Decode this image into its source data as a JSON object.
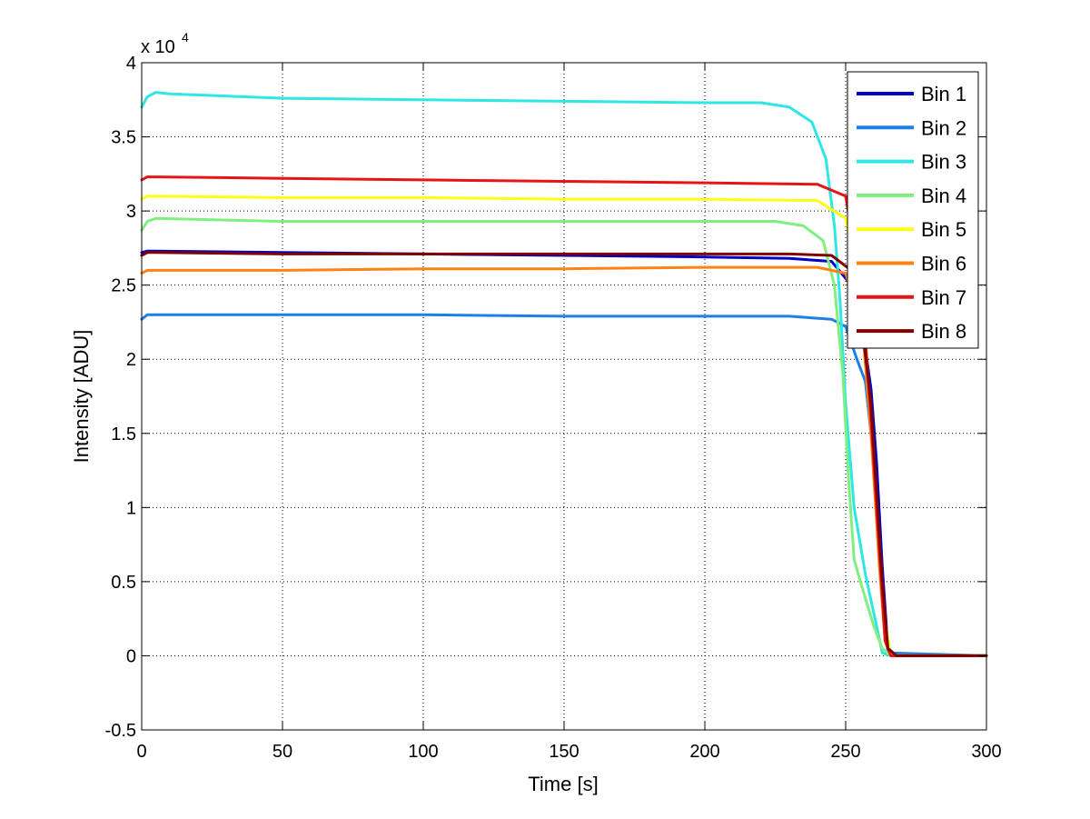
{
  "chart_data": {
    "type": "line",
    "title": "",
    "xlabel": "Time [s]",
    "ylabel": "Intensity [ADU]",
    "y_multiplier_base": "x 10",
    "y_multiplier_exponent": "4",
    "xlim": [
      0,
      300
    ],
    "ylim": [
      -0.5,
      4
    ],
    "x_ticks": [
      0,
      50,
      100,
      150,
      200,
      250,
      300
    ],
    "x_tick_labels": [
      "0",
      "50",
      "100",
      "150",
      "200",
      "250",
      "300"
    ],
    "y_ticks": [
      -0.5,
      0,
      0.5,
      1,
      1.5,
      2,
      2.5,
      3,
      3.5,
      4
    ],
    "y_tick_labels": [
      "-0.5",
      "0",
      "0.5",
      "1",
      "1.5",
      "2",
      "2.5",
      "3",
      "3.5",
      "4"
    ],
    "grid": true,
    "legend_position": "top-right",
    "series": [
      {
        "name": "Bin 1",
        "color": "#0000c8",
        "x": [
          0,
          2,
          5,
          50,
          100,
          150,
          200,
          230,
          245,
          252,
          256,
          259,
          261,
          263,
          265,
          268,
          300
        ],
        "y": [
          2.72,
          2.73,
          2.73,
          2.72,
          2.71,
          2.7,
          2.69,
          2.68,
          2.66,
          2.5,
          2.2,
          1.8,
          1.3,
          0.6,
          0.05,
          0,
          0
        ]
      },
      {
        "name": "Bin 2",
        "color": "#1e7fe6",
        "x": [
          0,
          2,
          5,
          50,
          100,
          150,
          200,
          230,
          245,
          250,
          254,
          257,
          259,
          261,
          263,
          265,
          300
        ],
        "y": [
          2.27,
          2.3,
          2.3,
          2.3,
          2.3,
          2.29,
          2.29,
          2.29,
          2.27,
          2.22,
          2.0,
          1.85,
          1.5,
          1.0,
          0.4,
          0.02,
          0
        ]
      },
      {
        "name": "Bin 3",
        "color": "#2fe6e6",
        "x": [
          0,
          2,
          5,
          10,
          50,
          100,
          150,
          200,
          220,
          230,
          238,
          243,
          246,
          248,
          250,
          253,
          257,
          261,
          263,
          266,
          300
        ],
        "y": [
          3.7,
          3.77,
          3.8,
          3.79,
          3.76,
          3.75,
          3.74,
          3.73,
          3.73,
          3.7,
          3.6,
          3.35,
          2.9,
          2.4,
          1.7,
          1.0,
          0.55,
          0.2,
          0.02,
          0,
          0
        ]
      },
      {
        "name": "Bin 4",
        "color": "#7ff07f",
        "x": [
          0,
          2,
          5,
          50,
          100,
          150,
          200,
          225,
          235,
          242,
          246,
          249,
          251,
          253,
          256,
          260,
          263,
          266,
          300
        ],
        "y": [
          2.87,
          2.93,
          2.95,
          2.93,
          2.93,
          2.93,
          2.93,
          2.93,
          2.9,
          2.8,
          2.5,
          1.9,
          1.2,
          0.65,
          0.45,
          0.2,
          0.05,
          0,
          0
        ]
      },
      {
        "name": "Bin 5",
        "color": "#ffff14",
        "x": [
          0,
          2,
          5,
          50,
          100,
          150,
          200,
          240,
          250,
          256,
          260,
          263,
          266,
          300
        ],
        "y": [
          3.08,
          3.1,
          3.1,
          3.09,
          3.09,
          3.08,
          3.08,
          3.07,
          2.95,
          2.3,
          1.3,
          0.35,
          0,
          0
        ]
      },
      {
        "name": "Bin 6",
        "color": "#ff8214",
        "x": [
          0,
          2,
          5,
          50,
          100,
          150,
          200,
          240,
          250,
          256,
          259,
          262,
          264,
          266,
          300
        ],
        "y": [
          2.58,
          2.6,
          2.6,
          2.6,
          2.61,
          2.61,
          2.62,
          2.62,
          2.58,
          2.2,
          1.5,
          0.6,
          0.1,
          0,
          0
        ]
      },
      {
        "name": "Bin 7",
        "color": "#e61414",
        "x": [
          0,
          2,
          5,
          50,
          100,
          150,
          200,
          240,
          250,
          256,
          259,
          262,
          264,
          266,
          300
        ],
        "y": [
          3.21,
          3.23,
          3.23,
          3.22,
          3.21,
          3.2,
          3.19,
          3.18,
          3.1,
          2.4,
          1.6,
          0.7,
          0.1,
          0,
          0
        ]
      },
      {
        "name": "Bin 8",
        "color": "#800000",
        "x": [
          0,
          2,
          5,
          50,
          100,
          150,
          200,
          230,
          245,
          252,
          256,
          259,
          261,
          263,
          265,
          268,
          300
        ],
        "y": [
          2.7,
          2.72,
          2.72,
          2.71,
          2.71,
          2.71,
          2.71,
          2.71,
          2.7,
          2.6,
          2.2,
          1.7,
          1.1,
          0.5,
          0.05,
          0,
          0
        ]
      }
    ]
  }
}
